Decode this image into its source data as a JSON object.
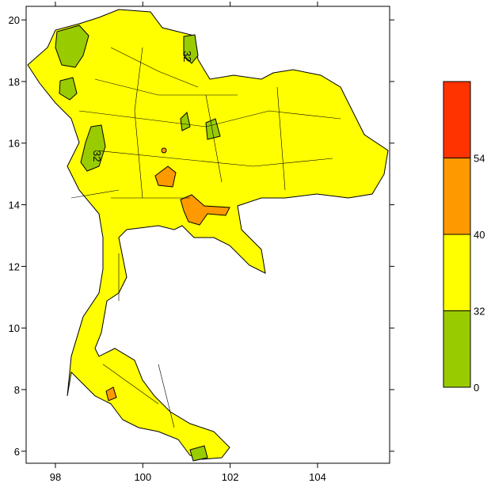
{
  "map": {
    "xlim": [
      97.33,
      105.65
    ],
    "ylim": [
      5.61,
      20.44
    ],
    "xticks": [
      98,
      100,
      102,
      104
    ],
    "yticks": [
      6,
      8,
      10,
      12,
      14,
      16,
      18,
      20
    ],
    "contour_labels": [
      "32",
      "32"
    ]
  },
  "colorbar": {
    "levels": [
      0,
      32,
      40,
      54
    ],
    "colors": [
      "#99cc00",
      "#ffff00",
      "#ff9900",
      "#ff3300"
    ]
  }
}
